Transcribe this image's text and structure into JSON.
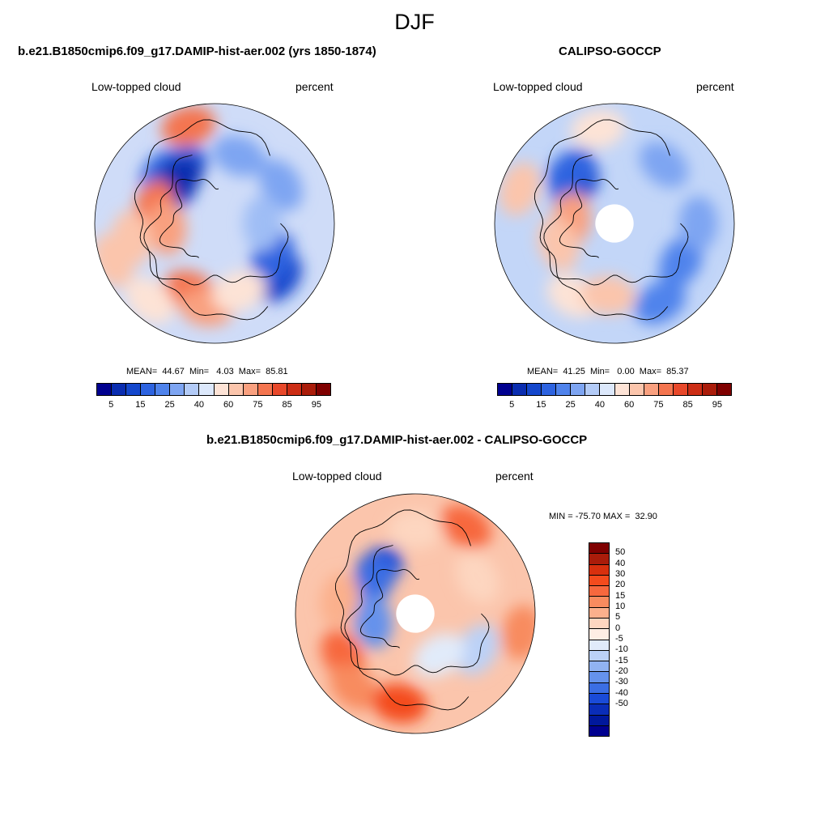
{
  "page_title": "DJF",
  "panels": [
    {
      "title": "b.e21.B1850cmip6.f09_g17.DAMIP-hist-aer.002 (yrs 1850-1874)",
      "left_label": "Low-topped cloud",
      "right_label": "percent",
      "stats": "MEAN=  44.67  Min=   4.03  Max=  85.81"
    },
    {
      "title": "CALIPSO-GOCCP",
      "left_label": "Low-topped cloud",
      "right_label": "percent",
      "stats": "MEAN=  41.25  Min=   0.00  Max=  85.37"
    },
    {
      "title": "b.e21.B1850cmip6.f09_g17.DAMIP-hist-aer.002 - CALIPSO-GOCCP",
      "left_label": "Low-topped cloud",
      "right_label": "percent",
      "stats": "MIN = -75.70 MAX =  32.90"
    }
  ],
  "colorbar_abs": {
    "colors": [
      "#00008f",
      "#0a2db0",
      "#1447cc",
      "#2d63e0",
      "#4f83ec",
      "#7ea5f2",
      "#b3cbf7",
      "#dce8fb",
      "#fde3d6",
      "#fbc5ac",
      "#f9a07f",
      "#f4754f",
      "#e8482a",
      "#cc2d15",
      "#aa1c0a",
      "#7f0000"
    ],
    "tick_labels": [
      "5",
      "15",
      "25",
      "40",
      "60",
      "75",
      "85",
      "95"
    ]
  },
  "colorbar_diff": {
    "colors": [
      "#7f0000",
      "#aa1c0a",
      "#d8300e",
      "#f44b1d",
      "#f7683e",
      "#f88b5f",
      "#fbb08c",
      "#fdd6c0",
      "#fdeee4",
      "#e1ebfa",
      "#bbd1f7",
      "#91b3f2",
      "#6592ec",
      "#3b6ee4",
      "#1a4bd8",
      "#0a2db8",
      "#00189c",
      "#00008f"
    ],
    "tick_labels": [
      "50",
      "40",
      "30",
      "20",
      "15",
      "10",
      "5",
      "0",
      "-5",
      "-10",
      "-15",
      "-20",
      "-30",
      "-40",
      "-50"
    ]
  },
  "map_fields": {
    "model": {
      "base": "#cfdcf8",
      "blobs": [
        {
          "lon": 45,
          "lat": 60,
          "level": "#3b6ee4"
        },
        {
          "lon": 30,
          "lat": 63,
          "level": "#2d63e0"
        },
        {
          "lon": 50,
          "lat": 68,
          "level": "#1447cc"
        },
        {
          "lon": 40,
          "lat": 66,
          "level": "#0a2db0"
        },
        {
          "lon": 75,
          "lat": 64,
          "level": "#f4754f"
        },
        {
          "lon": 95,
          "lat": 70,
          "level": "#f9a07f"
        },
        {
          "lon": 160,
          "lat": 60,
          "level": "#f4754f"
        },
        {
          "lon": 175,
          "lat": 55,
          "level": "#f9a07f"
        },
        {
          "lon": -130,
          "lat": 55,
          "level": "#1447cc"
        },
        {
          "lon": -120,
          "lat": 62,
          "level": "#2d63e0"
        },
        {
          "lon": 15,
          "lat": 48,
          "level": "#f4754f"
        },
        {
          "lon": 110,
          "lat": 45,
          "level": "#fbc5ac"
        },
        {
          "lon": -60,
          "lat": 58,
          "level": "#7ea5f2"
        },
        {
          "lon": -20,
          "lat": 60,
          "level": "#7ea5f2"
        },
        {
          "lon": -90,
          "lat": 70,
          "level": "#9fbdf5"
        },
        {
          "lon": 140,
          "lat": 48,
          "level": "#fde3d6"
        },
        {
          "lon": 100,
          "lat": 55,
          "level": "#fbc5ac"
        },
        {
          "lon": -160,
          "lat": 60,
          "level": "#fde3d6"
        }
      ]
    },
    "obs": {
      "base": "#c3d6f8",
      "hole_lat": 82,
      "blobs": [
        {
          "lon": 45,
          "lat": 67,
          "level": "#1447cc"
        },
        {
          "lon": 40,
          "lat": 62,
          "level": "#2d63e0"
        },
        {
          "lon": 85,
          "lat": 72,
          "level": "#f9a07f"
        },
        {
          "lon": 110,
          "lat": 65,
          "level": "#fbc5ac"
        },
        {
          "lon": -120,
          "lat": 58,
          "level": "#4f83ec"
        },
        {
          "lon": -90,
          "lat": 55,
          "level": "#7ea5f2"
        },
        {
          "lon": -40,
          "lat": 58,
          "level": "#7ea5f2"
        },
        {
          "lon": 150,
          "lat": 55,
          "level": "#fde3d6"
        },
        {
          "lon": 175,
          "lat": 60,
          "level": "#fbc5ac"
        },
        {
          "lon": 10,
          "lat": 50,
          "level": "#fde3d6"
        },
        {
          "lon": 70,
          "lat": 48,
          "level": "#fbc5ac"
        },
        {
          "lon": -150,
          "lat": 52,
          "level": "#4f83ec"
        }
      ]
    },
    "diff": {
      "base": "#fbc5ac",
      "hole_lat": 82,
      "blobs": [
        {
          "lon": 40,
          "lat": 66,
          "level": "#1a4bd8"
        },
        {
          "lon": 55,
          "lat": 68,
          "level": "#3b6ee4"
        },
        {
          "lon": 100,
          "lat": 72,
          "level": "#6592ec"
        },
        {
          "lon": 120,
          "lat": 55,
          "level": "#f7683e"
        },
        {
          "lon": 140,
          "lat": 50,
          "level": "#f88b5f"
        },
        {
          "lon": -30,
          "lat": 48,
          "level": "#f7683e"
        },
        {
          "lon": 170,
          "lat": 52,
          "level": "#f44b1d"
        },
        {
          "lon": -120,
          "lat": 60,
          "level": "#bbd1f7"
        },
        {
          "lon": -150,
          "lat": 70,
          "level": "#e1ebfa"
        },
        {
          "lon": -60,
          "lat": 60,
          "level": "#fdd6c0"
        },
        {
          "lon": 0,
          "lat": 55,
          "level": "#fdd6c0"
        },
        {
          "lon": 80,
          "lat": 58,
          "level": "#fbb08c"
        },
        {
          "lon": -100,
          "lat": 45,
          "level": "#f88b5f"
        }
      ]
    }
  }
}
